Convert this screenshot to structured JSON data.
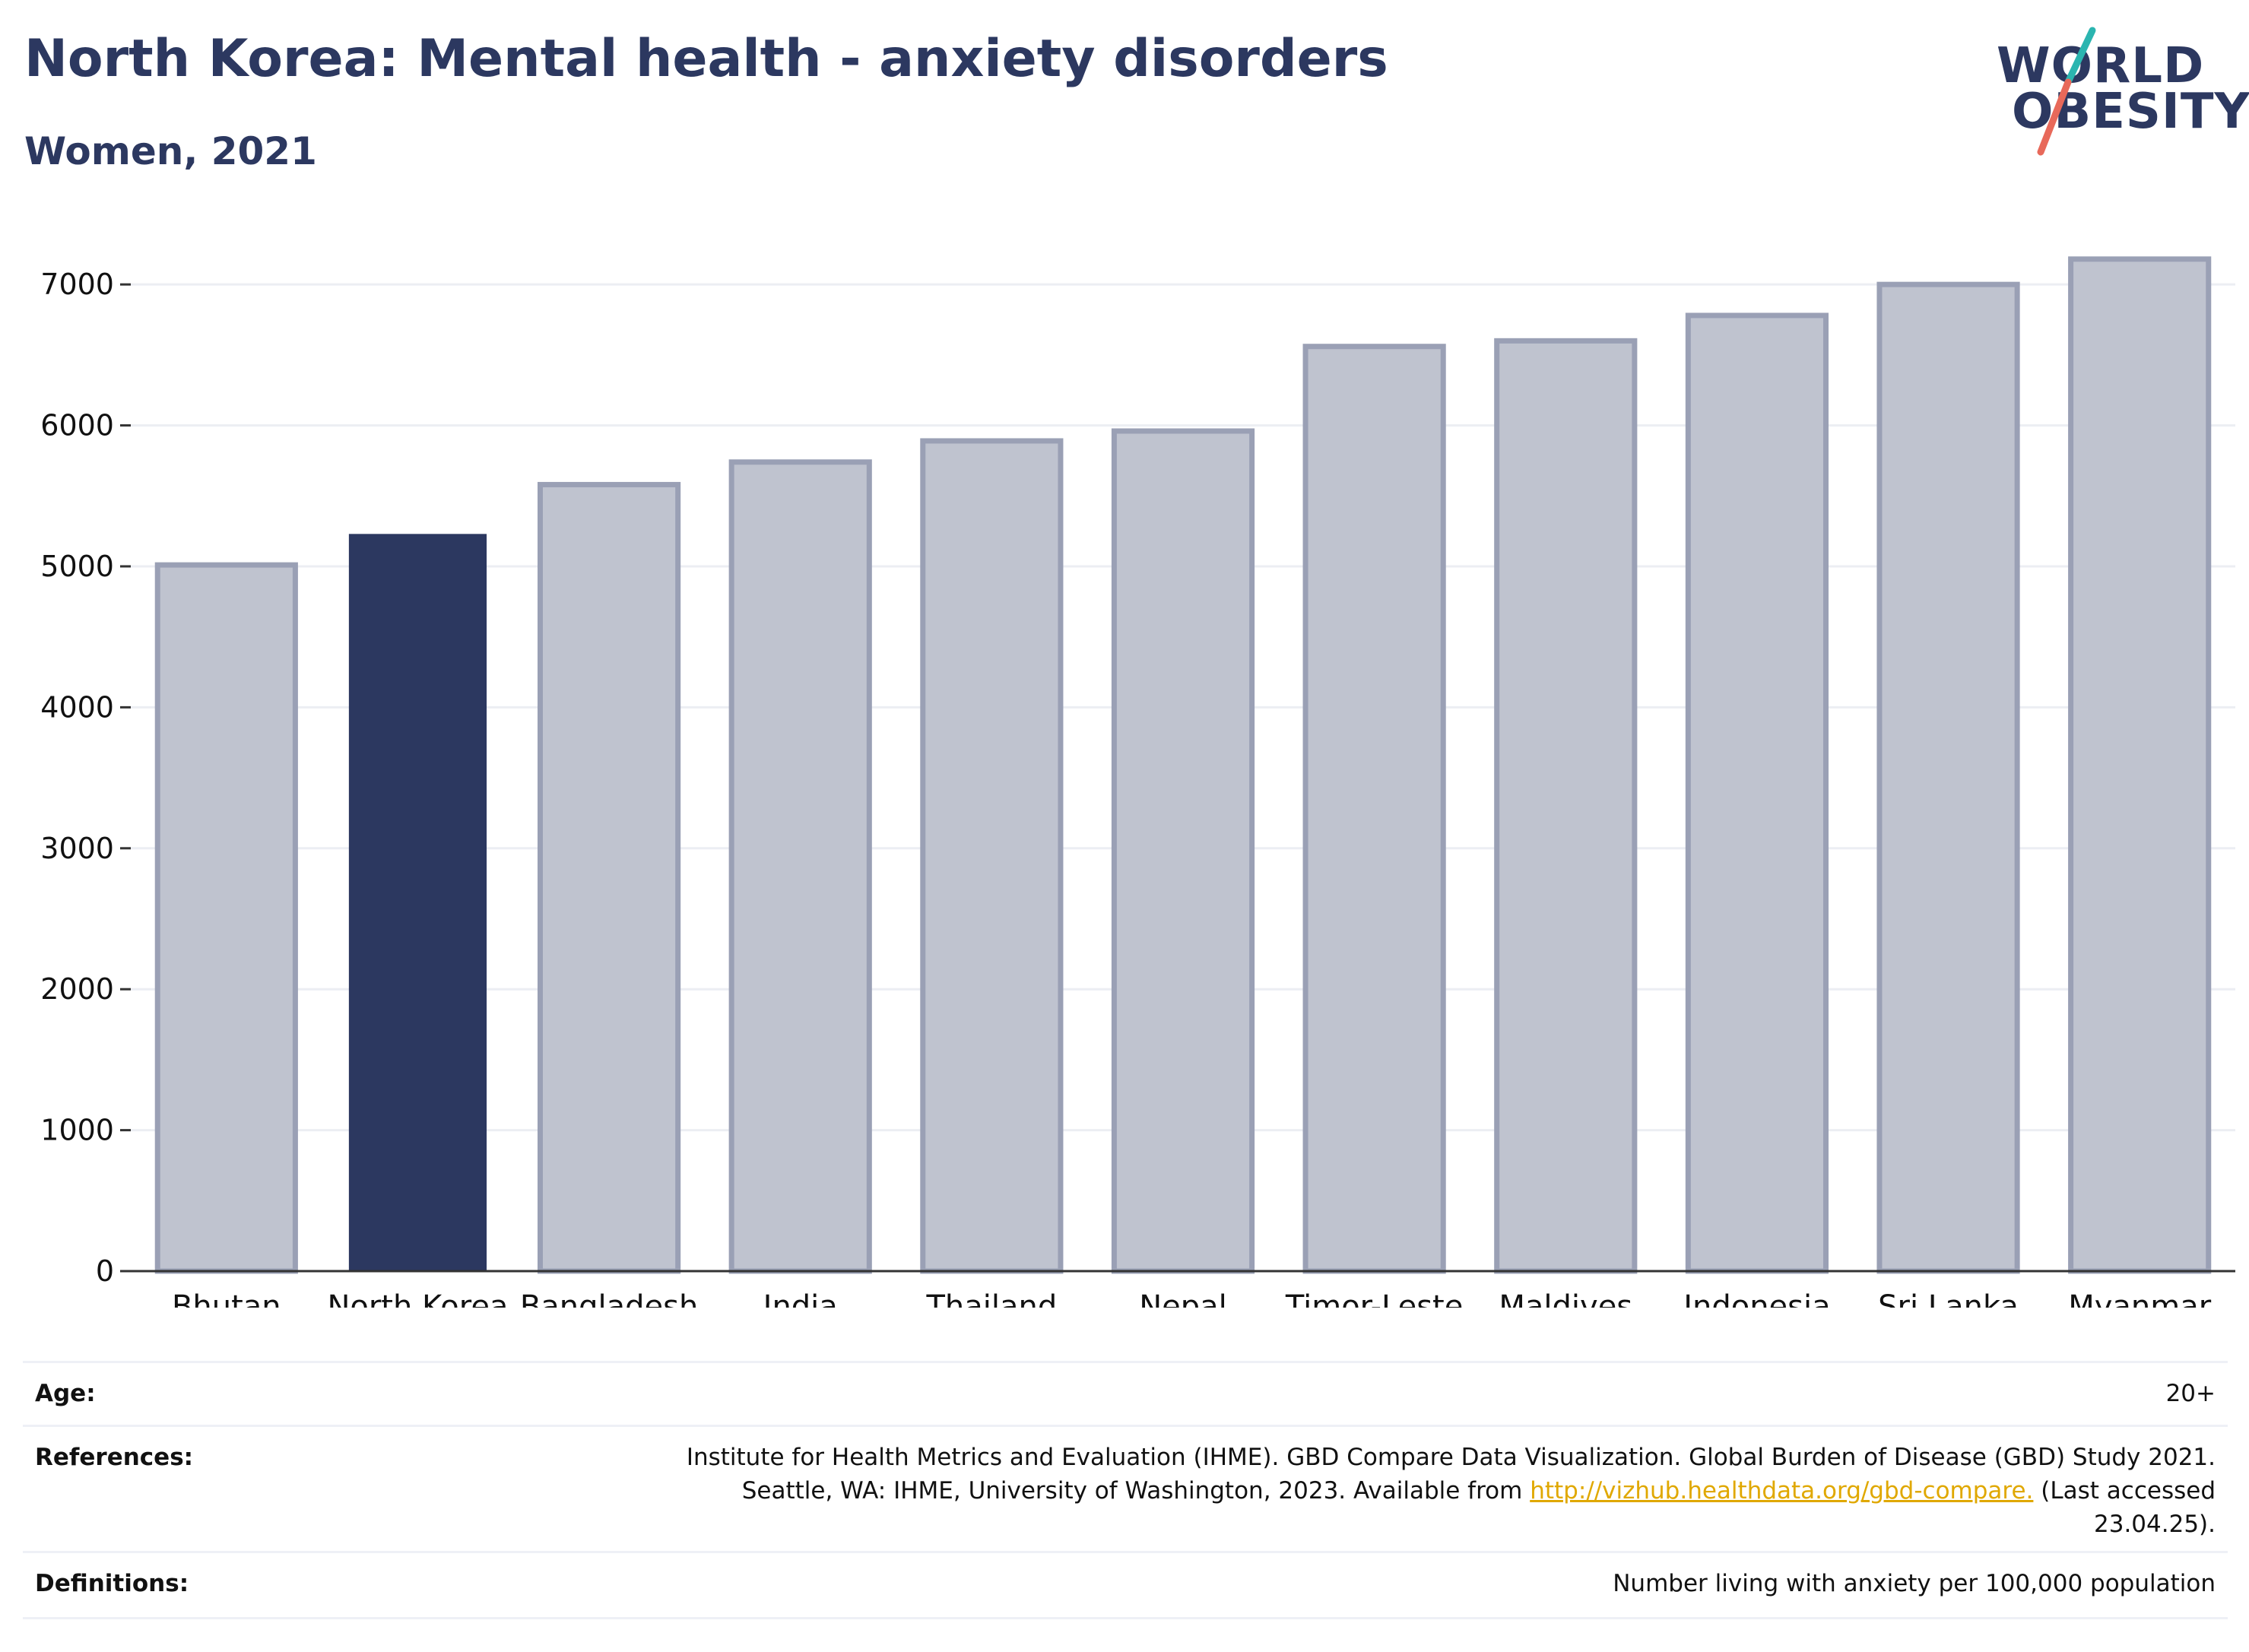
{
  "header": {
    "title": "North Korea: Mental health - anxiety disorders",
    "subtitle": "Women, 2021"
  },
  "logo": {
    "line1": "WORLD",
    "line2": "OBESITY",
    "colors": {
      "text": "#2c3860",
      "slash_top": "#2bb5b0",
      "slash_bottom": "#e8695a"
    }
  },
  "chart_data": {
    "type": "bar",
    "categories": [
      "Bhutan",
      "North Korea",
      "Bangladesh",
      "India",
      "Thailand",
      "Nepal",
      "Timor-Leste",
      "Maldives",
      "Indonesia",
      "Sri Lanka",
      "Myanmar"
    ],
    "values": [
      5010,
      5230,
      5580,
      5740,
      5890,
      5960,
      6560,
      6600,
      6780,
      7000,
      7180
    ],
    "highlight": "North Korea",
    "ylim": [
      0,
      7400
    ],
    "yticks": [
      0,
      1000,
      2000,
      3000,
      4000,
      5000,
      6000,
      7000
    ],
    "grid": true,
    "colors": {
      "highlight": "#2c3860",
      "other_fill": "#bfc3cf",
      "other_stroke": "#9aa0b5",
      "grid": "#eceef3",
      "axis": "#333333"
    }
  },
  "info": {
    "age": {
      "label": "Age:",
      "value": "20+"
    },
    "references": {
      "label": "References:",
      "line1": "Institute for Health Metrics and Evaluation (IHME). GBD Compare Data Visualization. Global Burden of Disease (GBD) Study 2021.",
      "line2_prefix": "Seattle, WA: IHME, University of Washington, 2023. Available from",
      "link": "http://vizhub.healthdata.org/gbd-compare.",
      "line2_suffix": "(Last accessed",
      "line3": "23.04.25)."
    },
    "definitions": {
      "label": "Definitions:",
      "value": "Number living with anxiety per 100,000 population"
    }
  }
}
